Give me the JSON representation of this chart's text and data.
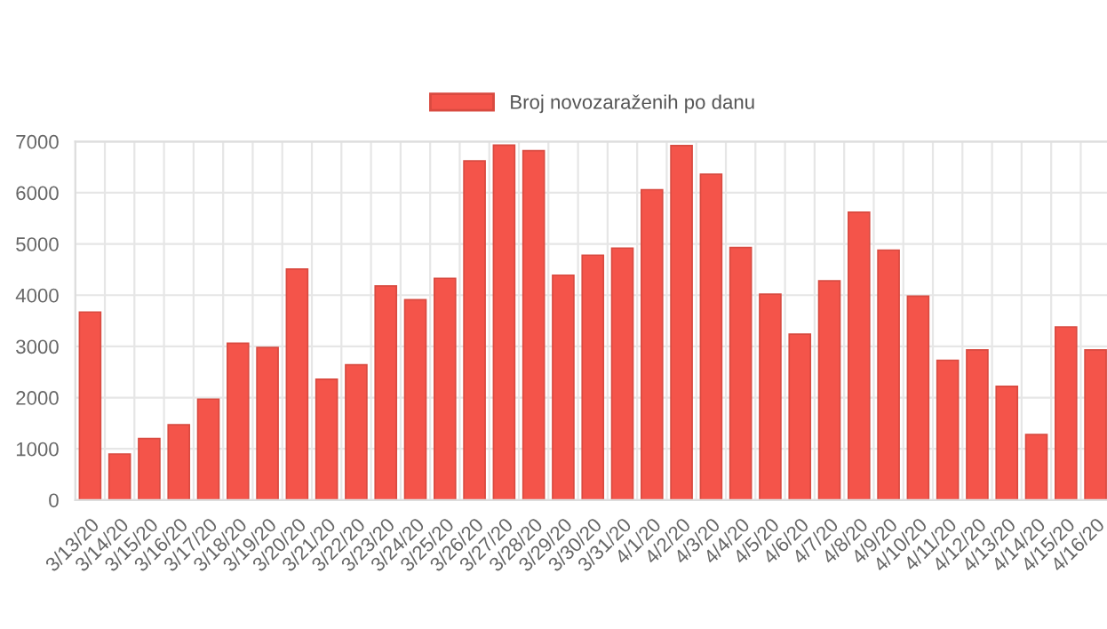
{
  "chart_data": {
    "type": "bar",
    "categories": [
      "3/13/20",
      "3/14/20",
      "3/15/20",
      "3/16/20",
      "3/17/20",
      "3/18/20",
      "3/19/20",
      "3/20/20",
      "3/21/20",
      "3/22/20",
      "3/23/20",
      "3/24/20",
      "3/25/20",
      "3/26/20",
      "3/27/20",
      "3/28/20",
      "3/29/20",
      "3/30/20",
      "3/31/20",
      "4/1/20",
      "4/2/20",
      "4/3/20",
      "4/4/20",
      "4/5/20",
      "4/6/20",
      "4/7/20",
      "4/8/20",
      "4/9/20",
      "4/10/20",
      "4/11/20",
      "4/12/20",
      "4/13/20",
      "4/14/20",
      "4/15/20",
      "4/16/20"
    ],
    "series": [
      {
        "name": "Broj novozaraženih po danu",
        "color": "#f4544a",
        "values": [
          3670,
          900,
          1200,
          1470,
          1970,
          3060,
          2980,
          4510,
          2360,
          2640,
          4180,
          3910,
          4330,
          6620,
          6930,
          6820,
          4390,
          4780,
          4920,
          6060,
          6920,
          6360,
          4930,
          4020,
          3240,
          4280,
          5620,
          4880,
          3980,
          2730,
          2930,
          2220,
          1280,
          3380,
          2930
        ]
      }
    ],
    "ylim": [
      0,
      7000
    ],
    "yticks": [
      0,
      1000,
      2000,
      3000,
      4000,
      5000,
      6000,
      7000
    ],
    "grid": true,
    "legend": "top"
  }
}
